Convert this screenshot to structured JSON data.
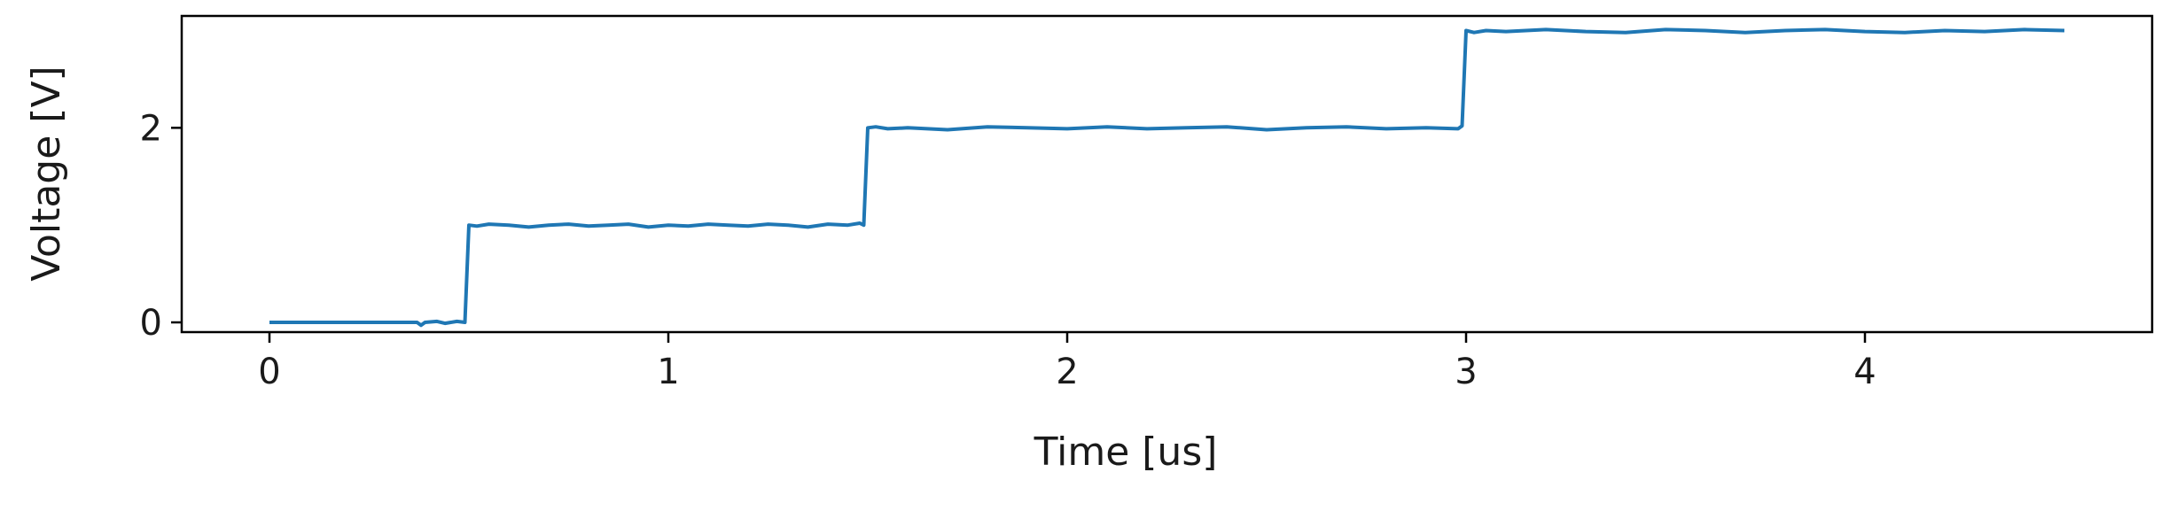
{
  "chart_data": {
    "type": "line",
    "title": "",
    "xlabel": "Time [us]",
    "ylabel": "Voltage [V]",
    "xlim": [
      -0.22,
      4.72
    ],
    "ylim": [
      -0.1,
      3.15
    ],
    "xticks": [
      0,
      1,
      2,
      3,
      4
    ],
    "yticks": [
      0,
      2
    ],
    "grid": false,
    "color": "#1f77b4",
    "series": [
      {
        "x": [
          0.0,
          0.37,
          0.38,
          0.39,
          0.42,
          0.44,
          0.47,
          0.49,
          0.5,
          0.52,
          0.55,
          0.6,
          0.65,
          0.7,
          0.75,
          0.8,
          0.85,
          0.9,
          0.95,
          1.0,
          1.05,
          1.1,
          1.15,
          1.2,
          1.25,
          1.3,
          1.35,
          1.4,
          1.45,
          1.48,
          1.49,
          1.5,
          1.52,
          1.55,
          1.6,
          1.7,
          1.8,
          1.9,
          2.0,
          2.1,
          2.2,
          2.3,
          2.4,
          2.5,
          2.6,
          2.7,
          2.8,
          2.9,
          2.98,
          2.99,
          3.0,
          3.02,
          3.05,
          3.1,
          3.2,
          3.3,
          3.4,
          3.5,
          3.6,
          3.7,
          3.8,
          3.9,
          4.0,
          4.1,
          4.2,
          4.3,
          4.4,
          4.5
        ],
        "y": [
          0.0,
          0.0,
          -0.03,
          0.0,
          0.01,
          -0.01,
          0.01,
          0.0,
          1.0,
          0.99,
          1.01,
          1.0,
          0.98,
          1.0,
          1.01,
          0.99,
          1.0,
          1.01,
          0.98,
          1.0,
          0.99,
          1.01,
          1.0,
          0.99,
          1.01,
          1.0,
          0.98,
          1.01,
          1.0,
          1.02,
          1.0,
          2.0,
          2.01,
          1.99,
          2.0,
          1.98,
          2.01,
          2.0,
          1.99,
          2.01,
          1.99,
          2.0,
          2.01,
          1.98,
          2.0,
          2.01,
          1.99,
          2.0,
          1.99,
          2.02,
          3.0,
          2.98,
          3.0,
          2.99,
          3.01,
          2.99,
          2.98,
          3.01,
          3.0,
          2.98,
          3.0,
          3.01,
          2.99,
          2.98,
          3.0,
          2.99,
          3.01,
          3.0
        ]
      }
    ]
  }
}
